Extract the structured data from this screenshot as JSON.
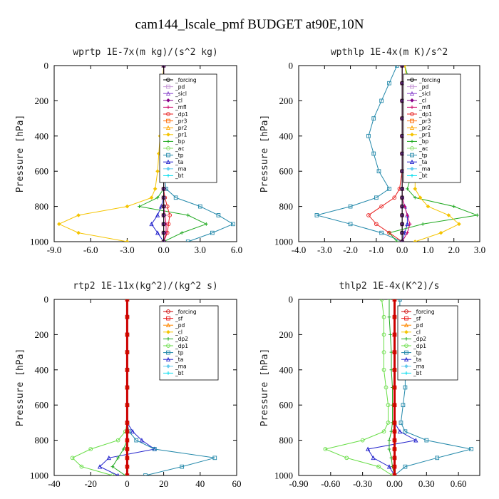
{
  "figure_title": "cam144_lscale_pmf  BUDGET at90E,10N",
  "chart_data": [
    {
      "type": "line",
      "title": "wprtp  1E-7x(m kg)/(s^2 kg)",
      "ylabel": "Pressure [hPa]",
      "xlim": [
        -9,
        6
      ],
      "xticks": [
        "-9.0",
        "-6.0",
        "-3.0",
        "0.0",
        "3.0",
        "6.0"
      ],
      "ylim": [
        1000,
        0
      ],
      "yticks": [
        "0",
        "200",
        "400",
        "600",
        "800",
        "1000"
      ],
      "y": [
        0,
        100,
        200,
        300,
        400,
        500,
        600,
        700,
        750,
        800,
        850,
        900,
        950,
        1000
      ],
      "series": [
        {
          "name": "_forcing",
          "color": "#000000",
          "values": [
            0,
            0,
            0,
            0,
            0,
            0,
            0,
            0,
            0,
            0,
            0,
            0,
            0,
            0
          ]
        },
        {
          "name": "_pd",
          "color": "#c89bd8",
          "values": [
            0,
            0,
            0,
            0,
            0,
            0,
            0,
            0,
            0,
            0,
            0,
            0,
            0,
            0
          ]
        },
        {
          "name": "_sicl",
          "color": "#8844cc",
          "values": [
            0,
            0,
            0,
            0,
            0,
            0,
            0,
            0,
            0,
            0,
            0,
            0,
            0,
            0
          ]
        },
        {
          "name": "_cl",
          "color": "#880088",
          "values": [
            0,
            0,
            0,
            0,
            0,
            0,
            0,
            0,
            0,
            0,
            0,
            0,
            0,
            0
          ]
        },
        {
          "name": "_mfl",
          "color": "#cc0066",
          "values": [
            0,
            0,
            0,
            0,
            0,
            0,
            0,
            0,
            0,
            0,
            0.1,
            0.2,
            0.2,
            0
          ]
        },
        {
          "name": "_dp1",
          "color": "#e82020",
          "values": [
            0,
            0,
            0,
            0,
            0,
            0,
            0,
            0,
            0.1,
            0.3,
            0.5,
            0.4,
            0.3,
            0
          ]
        },
        {
          "name": "_pr3",
          "color": "#ff6a00",
          "values": [
            0,
            0,
            0,
            0,
            0,
            0,
            0,
            0,
            0,
            0,
            0,
            0,
            0,
            0
          ]
        },
        {
          "name": "_pr2",
          "color": "#ffa600",
          "values": [
            0,
            0,
            0,
            0,
            0,
            0,
            0,
            0,
            0,
            0,
            0,
            0,
            0,
            0
          ]
        },
        {
          "name": "_pr1",
          "color": "#f5c400",
          "values": [
            0,
            -0.1,
            -0.2,
            -0.2,
            -0.3,
            -0.4,
            -0.5,
            -0.7,
            -1.0,
            -3.0,
            -7.0,
            -8.6,
            -7.0,
            -3.0
          ]
        },
        {
          "name": "_bp",
          "color": "#22aa22",
          "values": [
            0,
            0,
            0,
            0,
            0,
            0,
            0,
            0,
            -0.5,
            -2.0,
            2.0,
            3.5,
            1.5,
            0
          ]
        },
        {
          "name": "_ac",
          "color": "#88e066",
          "values": [
            0,
            0,
            0,
            0,
            0,
            0,
            0,
            0,
            0,
            0,
            0,
            0,
            0,
            0
          ]
        },
        {
          "name": "_tp",
          "color": "#2288aa",
          "values": [
            0,
            0,
            0,
            0,
            0,
            0,
            0,
            0.2,
            1.0,
            3.0,
            4.5,
            5.7,
            4.0,
            2.0
          ]
        },
        {
          "name": "_ta",
          "color": "#2222cc",
          "values": [
            0,
            0,
            0,
            0,
            0,
            0,
            0,
            0,
            0,
            -0.2,
            -0.5,
            -1.0,
            -0.5,
            0
          ]
        },
        {
          "name": "_ma",
          "color": "#66ccee",
          "values": [
            0,
            0,
            0,
            0,
            0,
            0,
            0,
            0,
            0,
            0,
            0,
            0,
            0,
            0
          ]
        },
        {
          "name": "_bt",
          "color": "#00ddee",
          "values": [
            0,
            0,
            0,
            0,
            0,
            0,
            0,
            0,
            0,
            0,
            0,
            0,
            0,
            0
          ]
        }
      ]
    },
    {
      "type": "line",
      "title": "wpthlp  1E-4x(m K)/s^2",
      "ylabel": "Pressure [hPa]",
      "xlim": [
        -4,
        3
      ],
      "xticks": [
        "-4.0",
        "-3.0",
        "-2.0",
        "-1.0",
        "0.0",
        "1.0",
        "2.0",
        "3.0"
      ],
      "ylim": [
        1000,
        0
      ],
      "yticks": [
        "0",
        "200",
        "400",
        "600",
        "800",
        "1000"
      ],
      "y": [
        0,
        100,
        200,
        300,
        400,
        500,
        600,
        700,
        750,
        800,
        850,
        900,
        950,
        1000
      ],
      "series": [
        {
          "name": "_forcing",
          "color": "#000000",
          "values": [
            0,
            0,
            0,
            0,
            0,
            0,
            0,
            0,
            0,
            0,
            0,
            0,
            0,
            0
          ]
        },
        {
          "name": "_pd",
          "color": "#c89bd8",
          "values": [
            0,
            0,
            0,
            0,
            0,
            0,
            0,
            0,
            0,
            0,
            0,
            0,
            0,
            0
          ]
        },
        {
          "name": "_sicl",
          "color": "#8844cc",
          "values": [
            0,
            0,
            0,
            0,
            0,
            0,
            0,
            0,
            0,
            0,
            0,
            0,
            0,
            0
          ]
        },
        {
          "name": "_cl",
          "color": "#880088",
          "values": [
            0,
            0,
            0,
            0,
            0,
            0,
            0,
            0,
            0,
            0,
            0,
            0,
            0,
            0
          ]
        },
        {
          "name": "_mfl",
          "color": "#cc0066",
          "values": [
            0,
            0,
            0,
            0,
            0,
            0,
            0,
            0,
            0,
            0.1,
            0.2,
            0.3,
            0.2,
            0
          ]
        },
        {
          "name": "_dp1",
          "color": "#e82020",
          "values": [
            0,
            0,
            0,
            0,
            0,
            0,
            0,
            -0.1,
            -0.3,
            -0.8,
            -1.3,
            -1.0,
            -0.5,
            0
          ]
        },
        {
          "name": "_pr3",
          "color": "#ff6a00",
          "values": [
            0,
            0,
            0,
            0,
            0,
            0,
            0,
            0,
            0,
            0,
            0,
            0,
            0,
            0
          ]
        },
        {
          "name": "_pr2",
          "color": "#ffa600",
          "values": [
            0,
            0,
            0,
            0,
            0,
            0,
            0,
            0,
            0,
            0,
            0,
            0,
            0,
            0
          ]
        },
        {
          "name": "_pr1",
          "color": "#f5c400",
          "values": [
            0.1,
            0.2,
            0.3,
            0.5,
            0.6,
            0.6,
            0.5,
            0.5,
            0.7,
            1.0,
            1.8,
            2.2,
            1.5,
            0.5
          ]
        },
        {
          "name": "_bp",
          "color": "#22aa22",
          "values": [
            0.1,
            0.3,
            0.6,
            0.7,
            0.7,
            0.6,
            0.4,
            0.2,
            0.5,
            2.0,
            2.9,
            0.8,
            -0.5,
            -0.2
          ]
        },
        {
          "name": "_ac",
          "color": "#88e066",
          "values": [
            0,
            0,
            0,
            0,
            0,
            0,
            0,
            0,
            0,
            0,
            0,
            0,
            0,
            0
          ]
        },
        {
          "name": "_tp",
          "color": "#2288aa",
          "values": [
            -0.2,
            -0.5,
            -0.8,
            -1.1,
            -1.3,
            -1.1,
            -0.9,
            -0.5,
            -1.0,
            -2.0,
            -3.3,
            -2.0,
            -0.8,
            0
          ]
        },
        {
          "name": "_ta",
          "color": "#2222cc",
          "values": [
            0,
            0,
            0,
            0,
            0,
            0,
            0,
            0,
            0,
            0.1,
            0.2,
            0.2,
            0.1,
            0
          ]
        },
        {
          "name": "_ma",
          "color": "#66ccee",
          "values": [
            0,
            0,
            0,
            0,
            0,
            0,
            0,
            0,
            0,
            0,
            0,
            0,
            0,
            0
          ]
        },
        {
          "name": "_bt",
          "color": "#00ddee",
          "values": [
            0,
            0,
            0,
            0,
            0,
            0,
            0,
            0,
            0,
            0,
            0,
            0,
            0,
            0
          ]
        }
      ]
    },
    {
      "type": "line",
      "title": "rtp2  1E-11x(kg^2)/(kg^2 s)",
      "ylabel": "Pressure [hPa]",
      "xlim": [
        -40,
        60
      ],
      "xticks": [
        "-40",
        "-20",
        "0",
        "20",
        "40",
        "60"
      ],
      "ylim": [
        1000,
        0
      ],
      "yticks": [
        "0",
        "200",
        "400",
        "600",
        "800",
        "1000"
      ],
      "y": [
        0,
        100,
        200,
        300,
        400,
        500,
        600,
        700,
        750,
        800,
        850,
        900,
        950,
        1000
      ],
      "series": [
        {
          "name": "_forcing",
          "color": "#cc0000",
          "values": [
            0,
            0,
            0,
            0,
            0,
            0,
            0,
            0,
            0,
            0,
            0,
            0,
            0,
            0
          ]
        },
        {
          "name": "_sf",
          "color": "#e82020",
          "values": [
            0,
            0,
            0,
            0,
            0,
            0,
            0,
            0,
            0,
            0,
            0,
            0,
            0,
            0
          ]
        },
        {
          "name": "_pd",
          "color": "#ff8800",
          "values": [
            0,
            0,
            0,
            0,
            0,
            0,
            0,
            0,
            0,
            0,
            0,
            0,
            0,
            0
          ]
        },
        {
          "name": "_cl",
          "color": "#f5c400",
          "values": [
            0,
            0,
            0,
            0,
            0,
            0,
            0,
            0,
            0,
            0,
            0,
            0,
            0,
            0
          ]
        },
        {
          "name": "_dp2",
          "color": "#22aa22",
          "values": [
            0,
            0,
            0,
            0,
            0,
            0,
            0,
            0,
            0,
            0,
            -2,
            -5,
            -8,
            -1
          ]
        },
        {
          "name": "_dp1",
          "color": "#66dd44",
          "values": [
            0,
            0,
            0,
            0,
            0,
            0,
            0,
            0,
            -1,
            -5,
            -20,
            -30,
            -25,
            -8
          ]
        },
        {
          "name": "_tp",
          "color": "#2288aa",
          "values": [
            0,
            0,
            0,
            0,
            0,
            0,
            0,
            0,
            1,
            5,
            15,
            48,
            30,
            10
          ]
        },
        {
          "name": "_ta",
          "color": "#2222cc",
          "values": [
            0,
            0,
            0,
            0,
            0,
            0,
            0,
            0,
            3,
            8,
            15,
            -10,
            -15,
            -5
          ]
        },
        {
          "name": "_ma",
          "color": "#66ccee",
          "values": [
            0,
            0,
            0,
            0,
            0,
            0,
            0,
            0,
            0,
            0,
            0,
            0,
            0,
            0
          ]
        },
        {
          "name": "_bt",
          "color": "#00ddee",
          "values": [
            0,
            0,
            0,
            0,
            0,
            0,
            0,
            0,
            0,
            0,
            0,
            0,
            0,
            0
          ]
        }
      ]
    },
    {
      "type": "line",
      "title": "thlp2  1E-4x(K^2)/s",
      "ylabel": "Pressure [hPa]",
      "xlim": [
        -0.9,
        0.8
      ],
      "xticks": [
        "-0.90",
        "-0.60",
        "-0.30",
        "0.00",
        "0.30",
        "0.60"
      ],
      "ylim": [
        1000,
        0
      ],
      "yticks": [
        "0",
        "200",
        "400",
        "600",
        "800",
        "1000"
      ],
      "y": [
        0,
        100,
        200,
        300,
        400,
        500,
        600,
        700,
        750,
        800,
        850,
        900,
        950,
        1000
      ],
      "series": [
        {
          "name": "_forcing",
          "color": "#cc0000",
          "values": [
            0,
            0,
            0,
            0,
            0,
            0,
            0,
            0,
            0,
            0,
            0,
            0,
            0,
            0
          ]
        },
        {
          "name": "_sf",
          "color": "#e82020",
          "values": [
            0,
            0,
            0,
            0,
            0,
            0,
            0,
            0,
            0,
            0,
            0,
            0,
            0,
            0
          ]
        },
        {
          "name": "_pd",
          "color": "#ff8800",
          "values": [
            0,
            0,
            0,
            0,
            0,
            0,
            0,
            0,
            0,
            0,
            0,
            0,
            0,
            0
          ]
        },
        {
          "name": "_cl",
          "color": "#f5c400",
          "values": [
            0,
            0,
            0,
            0,
            0,
            0,
            0,
            0,
            0,
            0,
            0,
            0,
            0,
            0
          ]
        },
        {
          "name": "_dp2",
          "color": "#22aa22",
          "values": [
            -0.05,
            -0.05,
            -0.04,
            -0.03,
            -0.03,
            -0.02,
            -0.02,
            -0.02,
            -0.03,
            -0.05,
            -0.05,
            -0.03,
            -0.02,
            0
          ]
        },
        {
          "name": "_dp1",
          "color": "#66dd44",
          "values": [
            -0.12,
            -0.1,
            -0.1,
            -0.1,
            -0.1,
            -0.08,
            -0.06,
            -0.06,
            -0.1,
            -0.3,
            -0.65,
            -0.45,
            -0.15,
            -0.02
          ]
        },
        {
          "name": "_tp",
          "color": "#2288aa",
          "values": [
            0.05,
            0.05,
            0.07,
            0.08,
            0.1,
            0.1,
            0.08,
            0.06,
            0.1,
            0.3,
            0.72,
            0.4,
            0.1,
            0
          ]
        },
        {
          "name": "_ta",
          "color": "#2222cc",
          "values": [
            0,
            0,
            0,
            0,
            0,
            0,
            0,
            0,
            0.05,
            0.2,
            -0.25,
            -0.2,
            -0.05,
            0
          ]
        },
        {
          "name": "_ma",
          "color": "#66ccee",
          "values": [
            0,
            0,
            0,
            0,
            0,
            0,
            0,
            0,
            0,
            0,
            0,
            0,
            0,
            0
          ]
        },
        {
          "name": "_bt",
          "color": "#00ddee",
          "values": [
            0,
            0,
            0,
            0,
            0,
            0,
            0,
            0,
            0,
            0,
            0,
            0,
            0,
            0
          ]
        }
      ]
    }
  ]
}
